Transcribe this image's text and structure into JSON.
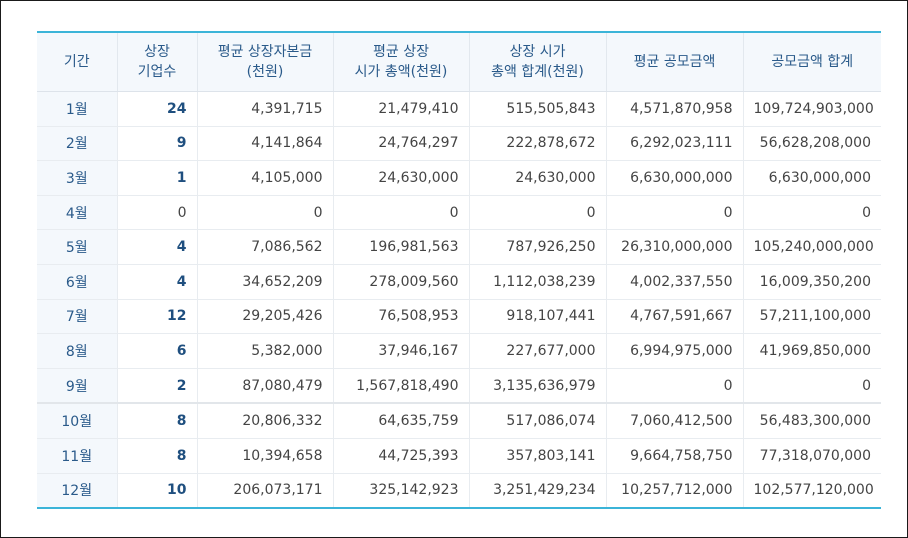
{
  "table": {
    "headers": [
      "기간",
      "상장\n기업수",
      "평균 상장자본금\n(천원)",
      "평균 상장\n시가 총액(천원)",
      "상장 시가\n총액 합계(천원)",
      "평균 공모금액",
      "공모금액 합계"
    ],
    "rows": [
      [
        "1월",
        "24",
        "4,391,715",
        "21,479,410",
        "515,505,843",
        "4,571,870,958",
        "109,724,903,000"
      ],
      [
        "2월",
        "9",
        "4,141,864",
        "24,764,297",
        "222,878,672",
        "6,292,023,111",
        "56,628,208,000"
      ],
      [
        "3월",
        "1",
        "4,105,000",
        "24,630,000",
        "24,630,000",
        "6,630,000,000",
        "6,630,000,000"
      ],
      [
        "4월",
        "0",
        "0",
        "0",
        "0",
        "0",
        "0"
      ],
      [
        "5월",
        "4",
        "7,086,562",
        "196,981,563",
        "787,926,250",
        "26,310,000,000",
        "105,240,000,000"
      ],
      [
        "6월",
        "4",
        "34,652,209",
        "278,009,560",
        "1,112,038,239",
        "4,002,337,550",
        "16,009,350,200"
      ],
      [
        "7월",
        "12",
        "29,205,426",
        "76,508,953",
        "918,107,441",
        "4,767,591,667",
        "57,211,100,000"
      ],
      [
        "8월",
        "6",
        "5,382,000",
        "37,946,167",
        "227,677,000",
        "6,994,975,000",
        "41,969,850,000"
      ],
      [
        "9월",
        "2",
        "87,080,479",
        "1,567,818,490",
        "3,135,636,979",
        "0",
        "0"
      ],
      [
        "10월",
        "8",
        "20,806,332",
        "64,635,759",
        "517,086,074",
        "7,060,412,500",
        "56,483,300,000"
      ],
      [
        "11월",
        "8",
        "10,394,658",
        "44,725,393",
        "357,803,141",
        "9,664,758,750",
        "77,318,070,000"
      ],
      [
        "12월",
        "10",
        "206,073,171",
        "325,142,923",
        "3,251,429,234",
        "10,257,712,000",
        "102,577,120,000"
      ]
    ]
  },
  "colors": {
    "accent_border": "#3bb4d8",
    "header_text": "#2a5a8a",
    "header_bg": "#f4f8fc",
    "count_text": "#1f4f7f"
  }
}
